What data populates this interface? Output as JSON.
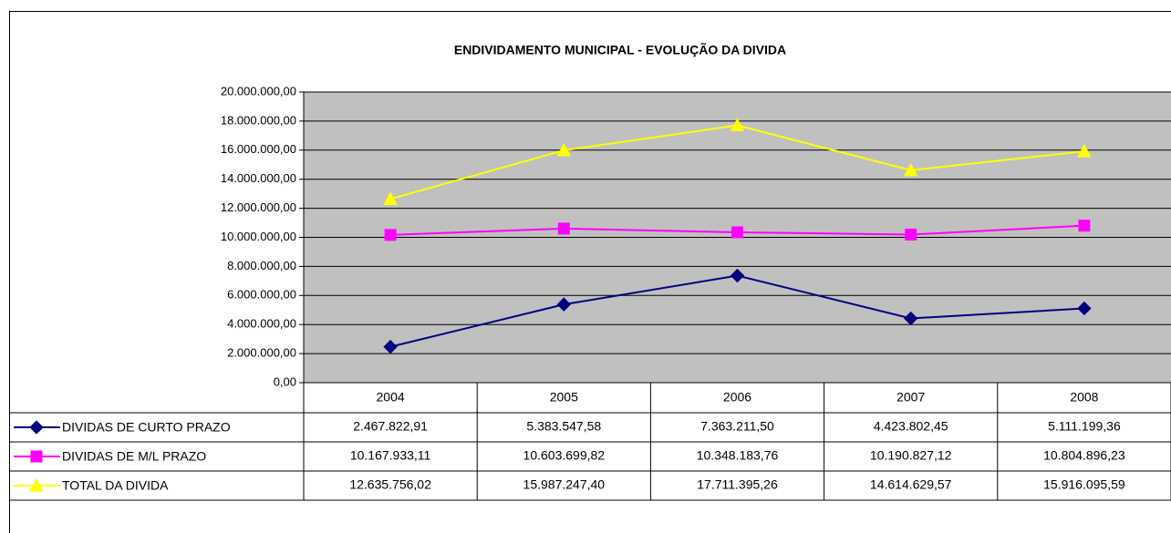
{
  "chart_data": {
    "type": "line",
    "title": "ENDIVIDAMENTO MUNICIPAL - EVOLUÇÃO DA DIVIDA",
    "categories": [
      "2004",
      "2005",
      "2006",
      "2007",
      "2008"
    ],
    "series": [
      {
        "name": "DIVIDAS DE CURTO PRAZO",
        "color": "#000080",
        "marker": "diamond",
        "values": [
          2467822.91,
          5383547.58,
          7363211.5,
          4423802.45,
          5111199.36
        ],
        "value_labels": [
          "2.467.822,91",
          "5.383.547,58",
          "7.363.211,50",
          "4.423.802,45",
          "5.111.199,36"
        ]
      },
      {
        "name": "DIVIDAS DE M/L PRAZO",
        "color": "#ff00ff",
        "marker": "square",
        "values": [
          10167933.11,
          10603699.82,
          10348183.76,
          10190827.12,
          10804896.23
        ],
        "value_labels": [
          "10.167.933,11",
          "10.603.699,82",
          "10.348.183,76",
          "10.190.827,12",
          "10.804.896,23"
        ]
      },
      {
        "name": "TOTAL DA DIVIDA",
        "color": "#ffff00",
        "marker": "triangle",
        "values": [
          12635756.02,
          15987247.4,
          17711395.26,
          14614629.57,
          15916095.59
        ],
        "value_labels": [
          "12.635.756,02",
          "15.987.247,40",
          "17.711.395,26",
          "14.614.629,57",
          "15.916.095,59"
        ]
      }
    ],
    "ylim": [
      0,
      20000000
    ],
    "yticks": [
      {
        "value": 0,
        "label": "0,00"
      },
      {
        "value": 2000000,
        "label": "2.000.000,00"
      },
      {
        "value": 4000000,
        "label": "4.000.000,00"
      },
      {
        "value": 6000000,
        "label": "6.000.000,00"
      },
      {
        "value": 8000000,
        "label": "8.000.000,00"
      },
      {
        "value": 10000000,
        "label": "10.000.000,00"
      },
      {
        "value": 12000000,
        "label": "12.000.000,00"
      },
      {
        "value": 14000000,
        "label": "14.000.000,00"
      },
      {
        "value": 16000000,
        "label": "16.000.000,00"
      },
      {
        "value": 18000000,
        "label": "18.000.000,00"
      },
      {
        "value": 20000000,
        "label": "20.000.000,00"
      }
    ],
    "grid": true,
    "plot_background": "#c0c0c0"
  }
}
